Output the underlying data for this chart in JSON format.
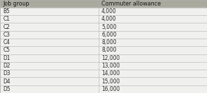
{
  "headers": [
    "Job group",
    "Commuter allowance"
  ],
  "rows": [
    [
      "B5",
      "4,000"
    ],
    [
      "C1",
      "4,000"
    ],
    [
      "C2",
      "5,000"
    ],
    [
      "C3",
      "6,000"
    ],
    [
      "C4",
      "8,000"
    ],
    [
      "C5",
      "8,000"
    ],
    [
      "D1",
      "12,000"
    ],
    [
      "D2",
      "13,000"
    ],
    [
      "D3",
      "14,000"
    ],
    [
      "D4",
      "15,000"
    ],
    [
      "D5",
      "16,000"
    ]
  ],
  "header_bg": "#a9a99e",
  "header_text": "#1a1a1a",
  "row_bg_light": "#f0f0ee",
  "row_bg_dark": "#e0e0de",
  "border_color": "#b0b0ae",
  "text_color": "#2a2a2a",
  "col_split": 0.475,
  "font_size": 5.5,
  "header_font_size": 5.8,
  "fig_width": 3.0,
  "fig_height": 1.35,
  "dpi": 100
}
